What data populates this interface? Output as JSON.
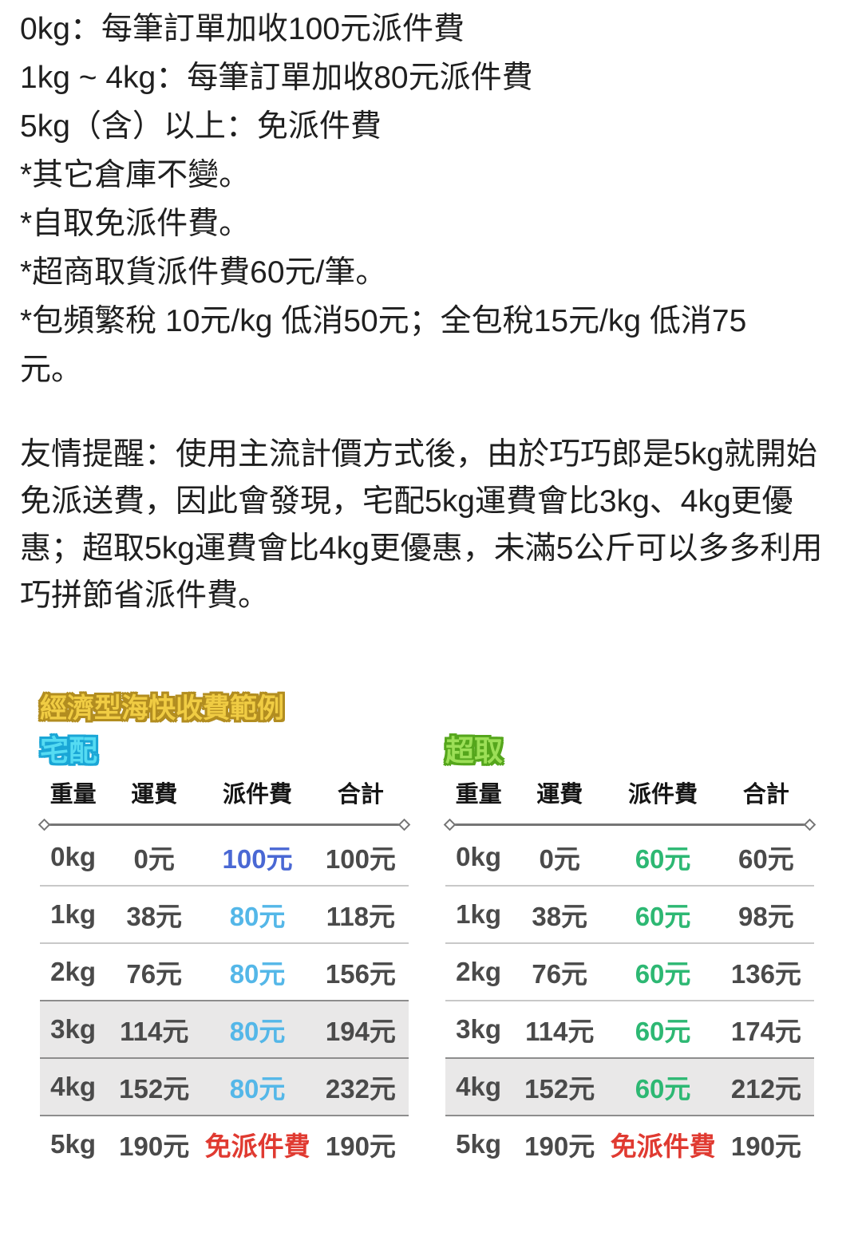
{
  "page": {
    "background": "#ffffff"
  },
  "notes": {
    "lines": [
      "0kg：每筆訂單加收100元派件費",
      "1kg ~ 4kg：每筆訂單加收80元派件費",
      "5kg（含）以上：免派件費",
      "*其它倉庫不變。",
      "*自取免派件費。",
      "*超商取貨派件費60元/筆。",
      "*包頻繁稅 10元/kg 低消50元；全包稅15元/kg 低消75元。"
    ]
  },
  "reminder": {
    "text": "友情提醒：使用主流計價方式後，由於巧巧郎是5kg就開始免派送費，因此會發現，宅配5kg運費會比3kg、4kg更優惠；超取5kg運費會比4kg更優惠，未滿5公斤可以多多利用巧拼節省派件費。"
  },
  "pricing_example": {
    "section_title": "經濟型海快收費範例",
    "column_headers": [
      "重量",
      "運費",
      "派件費",
      "合計"
    ],
    "home_delivery": {
      "title": "宅配",
      "rows": [
        {
          "weight": "0kg",
          "shipping": "0元",
          "delivery_fee": "100元",
          "total": "100元"
        },
        {
          "weight": "1kg",
          "shipping": "38元",
          "delivery_fee": "80元",
          "total": "118元"
        },
        {
          "weight": "2kg",
          "shipping": "76元",
          "delivery_fee": "80元",
          "total": "156元"
        },
        {
          "weight": "3kg",
          "shipping": "114元",
          "delivery_fee": "80元",
          "total": "194元"
        },
        {
          "weight": "4kg",
          "shipping": "152元",
          "delivery_fee": "80元",
          "total": "232元"
        },
        {
          "weight": "5kg",
          "shipping": "190元",
          "delivery_fee": "免派件費",
          "total": "190元"
        }
      ]
    },
    "store_pickup": {
      "title": "超取",
      "rows": [
        {
          "weight": "0kg",
          "shipping": "0元",
          "delivery_fee": "60元",
          "total": "60元"
        },
        {
          "weight": "1kg",
          "shipping": "38元",
          "delivery_fee": "60元",
          "total": "98元"
        },
        {
          "weight": "2kg",
          "shipping": "76元",
          "delivery_fee": "60元",
          "total": "136元"
        },
        {
          "weight": "3kg",
          "shipping": "114元",
          "delivery_fee": "60元",
          "total": "174元"
        },
        {
          "weight": "4kg",
          "shipping": "152元",
          "delivery_fee": "60元",
          "total": "212元"
        },
        {
          "weight": "5kg",
          "shipping": "190元",
          "delivery_fee": "免派件費",
          "total": "190元"
        }
      ]
    }
  },
  "colors": {
    "title_fill": "#f0cc43",
    "title_outline": "#b28d20",
    "home_fill": "#55dbf2",
    "home_outline": "#1aa6d6",
    "store_fill": "#9cdf57",
    "store_outline": "#55a61c",
    "fee_blue": "#4a68d4",
    "fee_cyan": "#54b7e8",
    "fee_green": "#2db873",
    "fee_red": "#e03a31",
    "row_highlight": "#e9e8e8"
  }
}
